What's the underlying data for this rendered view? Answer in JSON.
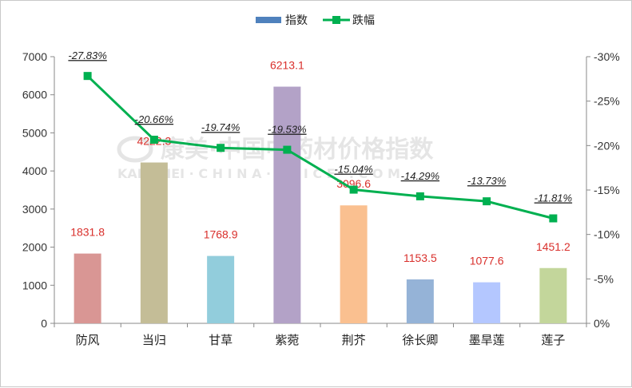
{
  "chart_data": {
    "type": "bar",
    "categories": [
      "防风",
      "当归",
      "甘草",
      "紫菀",
      "荆芥",
      "徐长卿",
      "墨旱莲",
      "莲子"
    ],
    "series": [
      {
        "name": "指数",
        "type": "bar",
        "axis": "left",
        "values": [
          1831.8,
          4222.3,
          1768.9,
          6213.1,
          3096.6,
          1153.5,
          1077.6,
          1451.2
        ],
        "labels": [
          "1831.8",
          "4222.3",
          "1768.9",
          "6213.1",
          "3096.6",
          "1153.5",
          "1077.6",
          "1451.2"
        ],
        "colors": [
          "#d99694",
          "#c4bd97",
          "#92cddc",
          "#b3a2c7",
          "#fac090",
          "#95b3d7",
          "#b4c7ff",
          "#c3d69b"
        ]
      },
      {
        "name": "跌幅",
        "type": "line",
        "axis": "right",
        "values": [
          -27.83,
          -20.66,
          -19.74,
          -19.53,
          -15.04,
          -14.29,
          -13.73,
          -11.81
        ],
        "labels": [
          "-27.83%",
          "-20.66%",
          "-19.74%",
          "-19.53%",
          "-15.04%",
          "-14.29%",
          "-13.73%",
          "-11.81%"
        ],
        "color": "#00b050"
      }
    ],
    "y_left": {
      "min": 0,
      "max": 7000,
      "ticks": [
        "0",
        "1000",
        "2000",
        "3000",
        "4000",
        "5000",
        "6000",
        "7000"
      ]
    },
    "y_right": {
      "min": 0,
      "max": -30,
      "reversed": true,
      "ticks": [
        "0%",
        "-5%",
        "-10%",
        "-15%",
        "-20%",
        "-25%",
        "-30%"
      ]
    },
    "legend_position": "top-center",
    "grid": false
  },
  "watermark": {
    "line1": "康美·中国中药材价格指数",
    "line2": "KANGMEI  · C H I N A  · P R I C E · . C O M"
  }
}
